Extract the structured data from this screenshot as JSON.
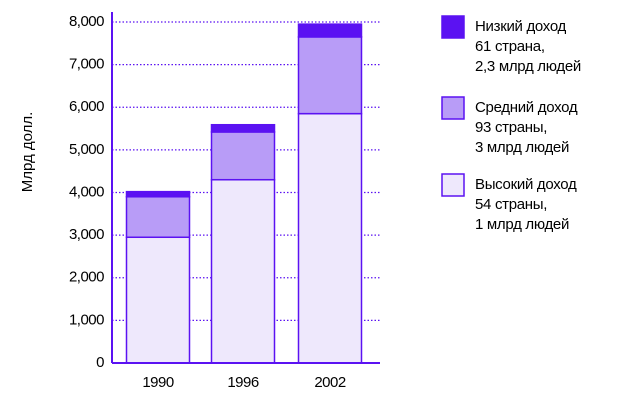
{
  "chart_data": {
    "type": "bar",
    "stacked": true,
    "categories": [
      "1990",
      "1996",
      "2002"
    ],
    "series": [
      {
        "key": "high",
        "name": "Высокий доход",
        "legend_lines": [
          "Высокий доход",
          "54 страны,",
          "1 млрд людей"
        ],
        "color": "#EEE8FC",
        "values": [
          2950,
          4300,
          5850
        ]
      },
      {
        "key": "middle",
        "name": "Средний доход",
        "legend_lines": [
          "Средний доход",
          "93 страны,",
          "3 млрд людей"
        ],
        "color": "#B89CF7",
        "values": [
          950,
          1120,
          1800
        ]
      },
      {
        "key": "low",
        "name": "Низкий доход",
        "legend_lines": [
          "Низкий доход",
          "61 страна,",
          "2,3 млрд людей"
        ],
        "color": "#5B12F2",
        "values": [
          120,
          170,
          300
        ]
      }
    ],
    "ylabel": "Млрд долл.",
    "ylim": [
      0,
      8000
    ],
    "yticks": [
      0,
      1000,
      2000,
      3000,
      4000,
      5000,
      6000,
      7000,
      8000
    ],
    "ytick_labels": [
      "0",
      "1,000",
      "2,000",
      "3,000",
      "4,000",
      "5,000",
      "6,000",
      "7,000",
      "8,000"
    ],
    "grid": true,
    "grid_style": "dotted",
    "legend_position": "right",
    "legend_order": [
      "low",
      "middle",
      "high"
    ],
    "axis_color": "#5B12F2",
    "bar_edge_color": "#5B12F2"
  }
}
